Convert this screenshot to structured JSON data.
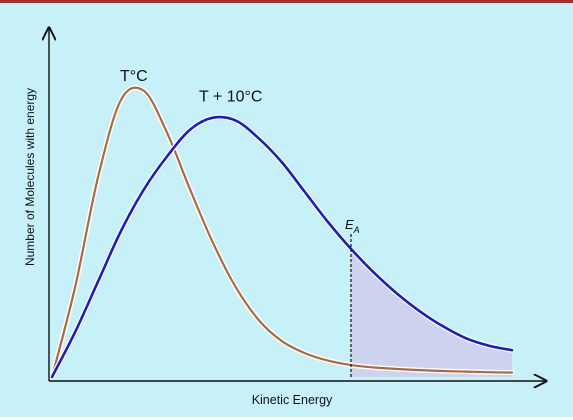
{
  "chart_data": {
    "type": "line",
    "title": "",
    "xlabel": "Kinetic Energy",
    "ylabel": "Number of Molecules with energy",
    "xlim": [
      0,
      10
    ],
    "ylim": [
      0,
      10
    ],
    "grid": false,
    "series": [
      {
        "name": "T°C",
        "color": "#b0683b",
        "x": [
          0,
          0.5,
          1.0,
          1.5,
          2.0,
          2.5,
          3.0,
          3.5,
          4.0,
          4.5,
          5.0,
          5.5,
          6.0,
          6.5,
          7.0,
          7.5,
          8.0,
          8.5,
          9.0,
          9.5,
          10.0
        ],
        "y": [
          0.0,
          3.0,
          6.7,
          9.3,
          9.6,
          8.2,
          6.3,
          4.5,
          3.0,
          1.9,
          1.2,
          0.8,
          0.55,
          0.4,
          0.32,
          0.27,
          0.23,
          0.2,
          0.18,
          0.16,
          0.15
        ]
      },
      {
        "name": "T + 10°C",
        "color": "#1a1ad6",
        "x": [
          0,
          0.5,
          1.0,
          1.5,
          2.0,
          2.5,
          3.0,
          3.5,
          4.0,
          4.5,
          5.0,
          5.5,
          6.0,
          6.5,
          7.0,
          7.5,
          8.0,
          8.5,
          9.0,
          9.5,
          10.0
        ],
        "y": [
          0.0,
          1.5,
          3.2,
          4.9,
          6.3,
          7.4,
          8.3,
          8.7,
          8.6,
          8.0,
          7.2,
          6.2,
          5.2,
          4.3,
          3.5,
          2.8,
          2.2,
          1.7,
          1.3,
          1.05,
          0.9
        ]
      }
    ],
    "annotations": [
      {
        "text": "T°C",
        "series": 0
      },
      {
        "text": "T + 10°C",
        "series": 1
      }
    ],
    "threshold": {
      "label": "E",
      "subscript": "A",
      "x": 6.5,
      "style": "dashed",
      "shaded_region_color": "#cdd2ee"
    }
  }
}
